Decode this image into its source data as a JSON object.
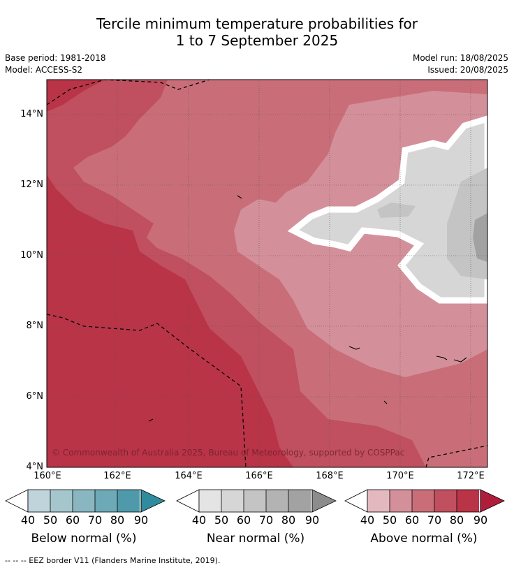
{
  "title": [
    "Tercile minimum temperature probabilities for",
    "1 to 7 September 2025"
  ],
  "base_period": "Base period: 1981-2018",
  "model": "Model: ACCESS-S2",
  "model_run": "Model run: 18/08/2025",
  "issued": "Issued: 20/08/2025",
  "copyright": "© Commonwealth of Australia 2025, Bureau of Meteorology, supported by COSPPac",
  "lat_labels": [
    "14°N",
    "12°N",
    "10°N",
    "8°N",
    "6°N",
    "4°N"
  ],
  "lon_labels": [
    "160°E",
    "162°E",
    "164°E",
    "166°E",
    "168°E",
    "170°E",
    "172°E"
  ],
  "colorbars": [
    {
      "title": "Below normal (%)",
      "ticks": [
        "40",
        "50",
        "60",
        "70",
        "80",
        "90"
      ],
      "colors": [
        "#ffffff",
        "#bfd5db",
        "#a6c6cd",
        "#89b6c1",
        "#6ea9b7",
        "#4f9aaa",
        "#2f8c9e"
      ]
    },
    {
      "title": "Near normal (%)",
      "ticks": [
        "40",
        "50",
        "60",
        "70",
        "80",
        "90"
      ],
      "colors": [
        "#ffffff",
        "#e4e4e4",
        "#d6d6d6",
        "#c4c4c4",
        "#b3b3b3",
        "#a2a2a2",
        "#8c8c8c"
      ]
    },
    {
      "title": "Above normal (%)",
      "ticks": [
        "40",
        "50",
        "60",
        "70",
        "80",
        "90"
      ],
      "colors": [
        "#ffffff",
        "#e3b9bf",
        "#d4909a",
        "#c96e79",
        "#c0505f",
        "#b93447",
        "#b01d3a"
      ]
    }
  ],
  "footnote": "--  --  -- EEZ border V11 (Flanders Marine Institute, 2019)."
}
